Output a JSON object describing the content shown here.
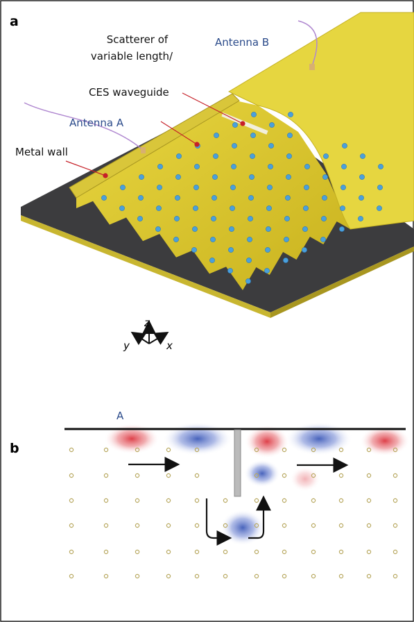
{
  "panel_a": {
    "label": "a",
    "annotations": {
      "scatterer": [
        "Scatterer of",
        "variable length/"
      ],
      "waveguide": "CES waveguide",
      "antenna_b": "Antenna B",
      "antenna_a": "Antenna A",
      "metal_wall": "Metal wall"
    },
    "axes": {
      "z": "z",
      "y": "y",
      "x": "x"
    }
  },
  "panel_b": {
    "label": "b",
    "antenna": "A"
  }
}
